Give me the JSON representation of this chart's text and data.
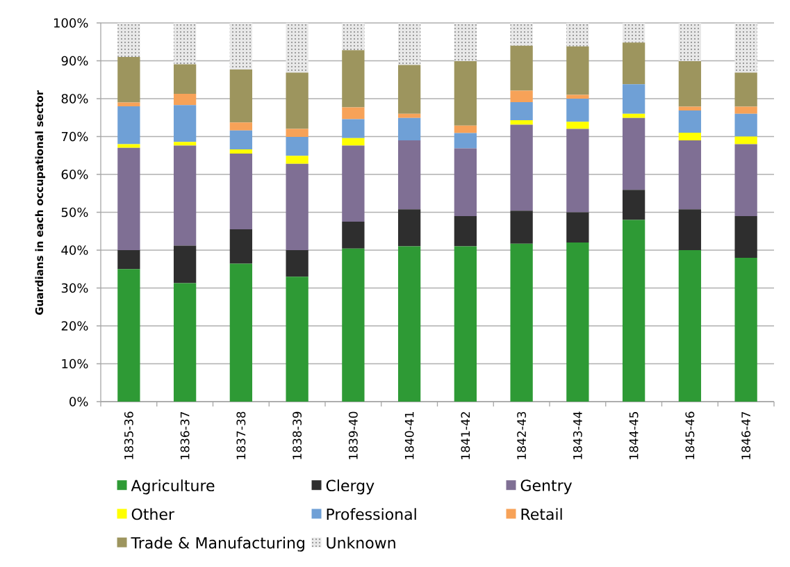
{
  "chart_data": {
    "type": "bar",
    "stacked": true,
    "ylabel": "Guardians in each occupational sector",
    "categories": [
      "1835-36",
      "1836-37",
      "1837-38",
      "1838-39",
      "1839-40",
      "1840-41",
      "1841-42",
      "1842-43",
      "1843-44",
      "1844-45",
      "1845-46",
      "1846-47"
    ],
    "series": [
      {
        "name": "Agriculture",
        "color": "#2e9a35",
        "values": [
          35,
          31.3,
          36.4,
          33,
          40.4,
          41,
          41,
          41.7,
          42,
          48,
          40,
          38
        ]
      },
      {
        "name": "Clergy",
        "color": "#2e2e2e",
        "values": [
          5,
          9.9,
          9.1,
          7,
          7.1,
          9.8,
          8,
          8.7,
          8,
          7.9,
          10.8,
          11
        ]
      },
      {
        "name": "Gentry",
        "color": "#7f6f94",
        "values": [
          27,
          26.4,
          20,
          22.8,
          20.1,
          18.2,
          17.9,
          22.7,
          22,
          19,
          18.2,
          19
        ]
      },
      {
        "name": "Other",
        "color": "#ffff00",
        "values": [
          1,
          1,
          1.1,
          2.1,
          2,
          0,
          0,
          1.2,
          1.9,
          1.1,
          2,
          2
        ]
      },
      {
        "name": "Professional",
        "color": "#6fa0d6",
        "values": [
          10,
          9.7,
          5,
          5,
          5,
          5.9,
          4,
          4.8,
          6.1,
          7.8,
          5.9,
          6
        ]
      },
      {
        "name": "Retail",
        "color": "#f7a258",
        "values": [
          1,
          3,
          2.1,
          2.1,
          3.1,
          1.1,
          2,
          3,
          1,
          0,
          1,
          1.9
        ]
      },
      {
        "name": "Trade & Manufacturing",
        "color": "#9d955e",
        "values": [
          12,
          7.8,
          14,
          14.9,
          15.1,
          12.9,
          17,
          11.9,
          12.8,
          11,
          12,
          9
        ]
      },
      {
        "name": "Unknown",
        "color": "#e8e8e8",
        "values": [
          9,
          10.9,
          12.3,
          13.1,
          7.2,
          11.1,
          10.1,
          6,
          6.2,
          5.2,
          10.1,
          13.1
        ]
      }
    ],
    "ylim": [
      0,
      100
    ],
    "yticks": [
      {
        "value": 0,
        "label": "0%"
      },
      {
        "value": 10,
        "label": "10%"
      },
      {
        "value": 20,
        "label": "20%"
      },
      {
        "value": 30,
        "label": "30%"
      },
      {
        "value": 40,
        "label": "40%"
      },
      {
        "value": 50,
        "label": "50%"
      },
      {
        "value": 60,
        "label": "60%"
      },
      {
        "value": 70,
        "label": "70%"
      },
      {
        "value": 80,
        "label": "80%"
      },
      {
        "value": 90,
        "label": "90%"
      },
      {
        "value": 100,
        "label": "100%"
      }
    ],
    "grid": "y",
    "legend": "bottom"
  }
}
